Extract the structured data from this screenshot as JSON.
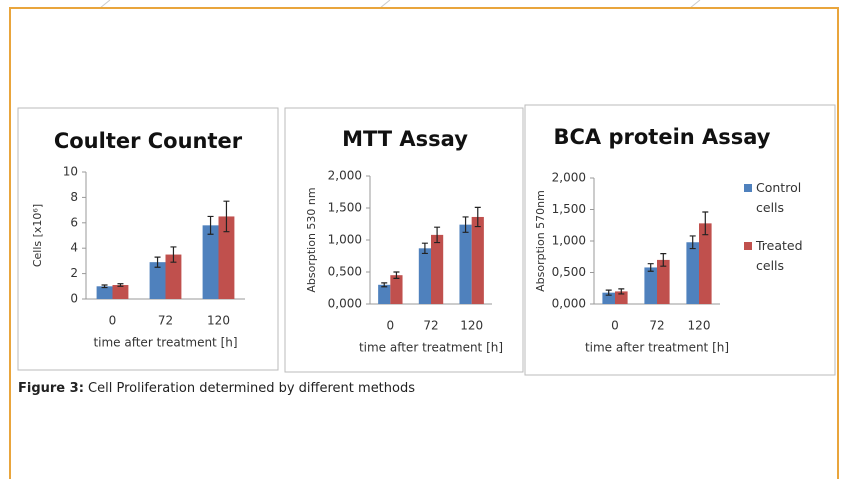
{
  "chart_data": [
    {
      "type": "bar",
      "title": "Coulter Counter",
      "y_label": "Cells [x10⁶]",
      "x_label": "time after treatment [h]",
      "categories": [
        "0",
        "72",
        "120"
      ],
      "series": [
        {
          "color": "#4f81bd",
          "values": [
            1.0,
            2.9,
            5.8
          ],
          "errors": [
            0.1,
            0.4,
            0.7
          ]
        },
        {
          "color": "#c0504d",
          "values": [
            1.1,
            3.5,
            6.5
          ],
          "errors": [
            0.1,
            0.6,
            1.2
          ]
        }
      ],
      "ylim": [
        0,
        10
      ],
      "yticks": [
        0,
        2,
        4,
        6,
        8,
        10
      ],
      "grid": false,
      "legend": false
    },
    {
      "type": "bar",
      "title": "MTT Assay",
      "y_label": "Absorption 530 nm",
      "x_label": "time after treatment [h]",
      "categories": [
        "0",
        "72",
        "120"
      ],
      "series": [
        {
          "color": "#4f81bd",
          "values": [
            0.3,
            0.87,
            1.24
          ],
          "errors": [
            0.03,
            0.08,
            0.12
          ]
        },
        {
          "color": "#c0504d",
          "values": [
            0.45,
            1.08,
            1.36
          ],
          "errors": [
            0.05,
            0.12,
            0.15
          ]
        }
      ],
      "ylim": [
        0,
        2
      ],
      "yticks": [
        {
          "value": 0,
          "label": "0,000"
        },
        {
          "value": 0.5,
          "label": "0,500"
        },
        {
          "value": 1,
          "label": "1,000"
        },
        {
          "value": 1.5,
          "label": "1,500"
        },
        {
          "value": 2,
          "label": "2,000"
        }
      ],
      "grid": false,
      "legend": false
    },
    {
      "type": "bar",
      "title": "BCA protein Assay",
      "y_label": "Absorption 570nm",
      "x_label": "time after treatment [h]",
      "categories": [
        "0",
        "72",
        "120"
      ],
      "series": [
        {
          "name": "Control cells",
          "color": "#4f81bd",
          "values": [
            0.18,
            0.58,
            0.98
          ],
          "errors": [
            0.04,
            0.06,
            0.1
          ]
        },
        {
          "name": "Treated cells",
          "color": "#c0504d",
          "values": [
            0.2,
            0.7,
            1.28
          ],
          "errors": [
            0.04,
            0.1,
            0.18
          ]
        }
      ],
      "ylim": [
        0,
        2
      ],
      "yticks": [
        {
          "value": 0,
          "label": "0,000"
        },
        {
          "value": 0.5,
          "label": "0,500"
        },
        {
          "value": 1,
          "label": "1,000"
        },
        {
          "value": 1.5,
          "label": "1,500"
        },
        {
          "value": 2,
          "label": "2,000"
        }
      ],
      "grid": false,
      "legend": true
    }
  ],
  "caption": {
    "label": "Figure 3:",
    "text": "Cell Proliferation determined by different methods"
  }
}
